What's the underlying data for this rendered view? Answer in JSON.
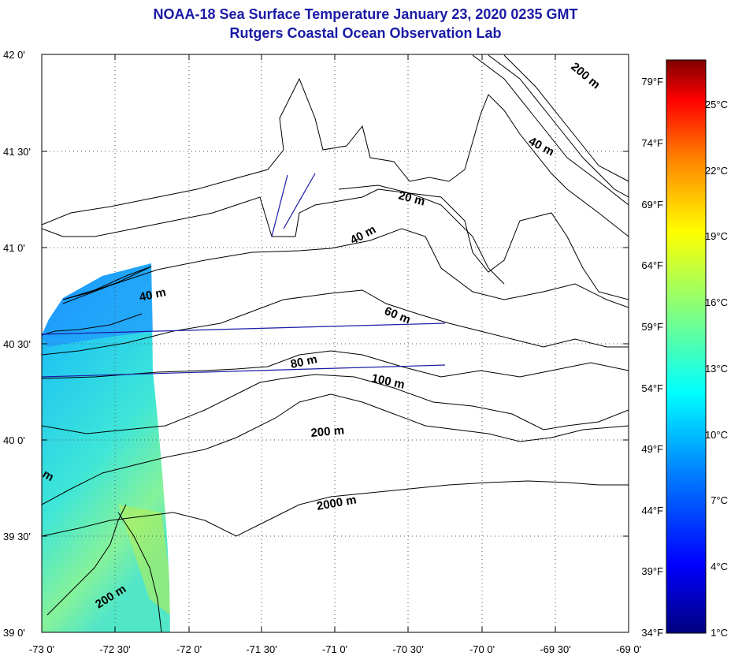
{
  "title_line1": "NOAA-18 Sea Surface Temperature January 23, 2020 0235 GMT",
  "title_line2": "Rutgers Coastal Ocean Observation Lab",
  "map": {
    "lon_ticks": [
      "-73 0'",
      "-72 30'",
      "-72 0'",
      "-71 30'",
      "-71 0'",
      "-70 30'",
      "-70 0'",
      "-69 30'",
      "-69 0'"
    ],
    "lat_ticks": [
      "42 0'",
      "41 30'",
      "41 0'",
      "40 30'",
      "40 0'",
      "39 30'",
      "39 0'"
    ],
    "contour_labels": [
      "200 m",
      "40 m",
      "20 m",
      "40 m",
      "40 m",
      "60 m",
      "80 m",
      "100 m",
      "200 m",
      "2000 m",
      "200 m",
      "m"
    ]
  },
  "colorbar": {
    "fahrenheit_labels": [
      "79°F",
      "74°F",
      "69°F",
      "64°F",
      "59°F",
      "54°F",
      "49°F",
      "44°F",
      "39°F",
      "34°F"
    ],
    "celsius_labels": [
      "25°C",
      "22°C",
      "19°C",
      "16°C",
      "13°C",
      "10°C",
      "7°C",
      "4°C",
      "1°C"
    ],
    "colors": [
      "#00007f",
      "#0000ff",
      "#0080ff",
      "#00ffff",
      "#80ff80",
      "#ffff00",
      "#ff8000",
      "#ff0000",
      "#7f0000"
    ]
  }
}
